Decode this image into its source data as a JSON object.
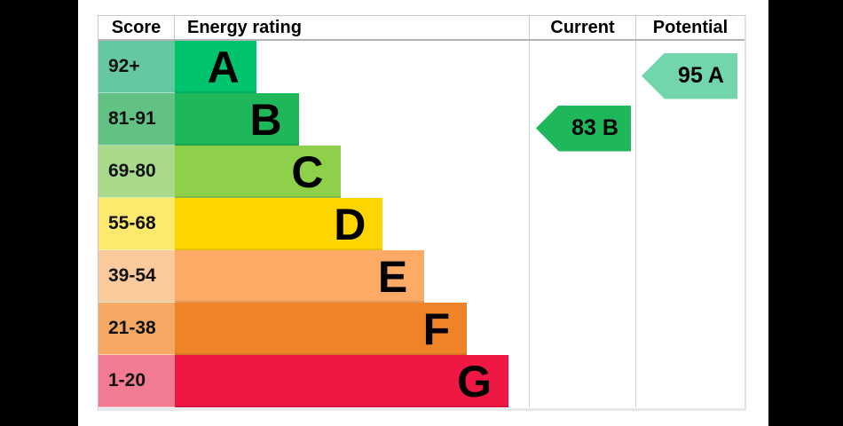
{
  "header": {
    "score": "Score",
    "energy_rating": "Energy rating",
    "current": "Current",
    "potential": "Potential"
  },
  "bands": [
    {
      "letter": "A",
      "score": "92+",
      "color": "#00c36d",
      "score_bg": "#66c8a2",
      "width_pct": 23.0
    },
    {
      "letter": "B",
      "score": "81-91",
      "color": "#1eb75a",
      "score_bg": "#61c283",
      "width_pct": 35.0
    },
    {
      "letter": "C",
      "score": "69-80",
      "color": "#8ed04a",
      "score_bg": "#a9da8c",
      "width_pct": 46.75
    },
    {
      "letter": "D",
      "score": "55-68",
      "color": "#ffd500",
      "score_bg": "#fde96e",
      "width_pct": 58.75
    },
    {
      "letter": "E",
      "score": "39-54",
      "color": "#fcaa66",
      "score_bg": "#fbca9c",
      "width_pct": 70.5
    },
    {
      "letter": "F",
      "score": "21-38",
      "color": "#ef8327",
      "score_bg": "#f4a864",
      "width_pct": 82.5
    },
    {
      "letter": "G",
      "score": "1-20",
      "color": "#ef1744",
      "score_bg": "#f17b91",
      "width_pct": 94.25
    }
  ],
  "current": {
    "label": "83 B",
    "value": 83,
    "band": "B",
    "color": "#1eb75a"
  },
  "potential": {
    "label": "95 A",
    "value": 95,
    "band": "A",
    "color": "#73d5ac"
  },
  "chart_data": {
    "type": "bar",
    "title": "Energy rating",
    "columns": [
      "Score",
      "Energy rating",
      "Current",
      "Potential"
    ],
    "categories": [
      "A",
      "B",
      "C",
      "D",
      "E",
      "F",
      "G"
    ],
    "score_ranges": [
      "92+",
      "81-91",
      "69-80",
      "55-68",
      "39-54",
      "21-38",
      "1-20"
    ],
    "bar_lengths_relative": [
      1,
      1.5,
      2,
      2.5,
      3,
      3.5,
      4
    ],
    "band_colors": [
      "#00c36d",
      "#1eb75a",
      "#8ed04a",
      "#ffd500",
      "#fcaa66",
      "#ef8327",
      "#ef1744"
    ],
    "current_rating": {
      "value": 83,
      "band": "B"
    },
    "potential_rating": {
      "value": 95,
      "band": "A"
    },
    "legend_position": "none",
    "grid": false
  }
}
